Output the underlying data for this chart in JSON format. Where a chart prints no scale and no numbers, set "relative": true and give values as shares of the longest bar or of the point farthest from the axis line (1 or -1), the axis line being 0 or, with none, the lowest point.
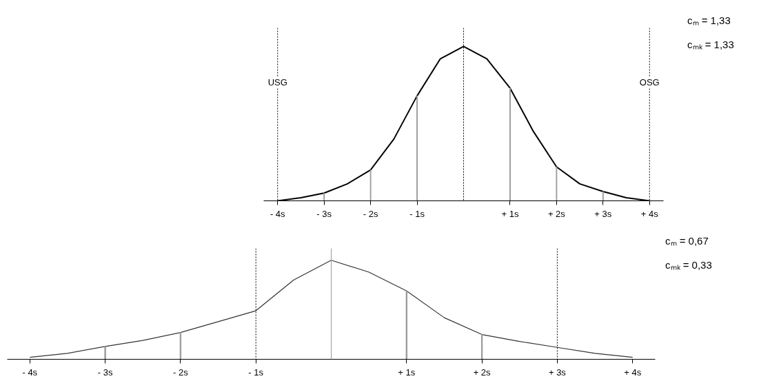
{
  "chart_data": [
    {
      "type": "line",
      "relative": true,
      "x": [
        -4,
        -3.5,
        -3,
        -2.5,
        -2,
        -1.5,
        -1,
        -0.5,
        0,
        0.5,
        1,
        1.5,
        2,
        2.5,
        3,
        3.5,
        4
      ],
      "series": [
        {
          "color": "#000000",
          "values": [
            0,
            0.02,
            0.05,
            0.11,
            0.2,
            0.4,
            0.68,
            0.92,
            1,
            0.92,
            0.73,
            0.45,
            0.22,
            0.11,
            0.06,
            0.02,
            0
          ]
        },
        {
          "type": "bar",
          "color": "#999999",
          "x": [
            -3,
            -2,
            -1,
            1,
            2,
            3
          ],
          "values": [
            0.05,
            0.2,
            0.68,
            0.73,
            0.22,
            0.06
          ]
        }
      ],
      "xlim": [
        -4.3,
        4.3
      ],
      "xticks": [
        {
          "value": -4,
          "label": "- 4s"
        },
        {
          "value": -3,
          "label": "- 3s"
        },
        {
          "value": -2,
          "label": "- 2s"
        },
        {
          "value": -1,
          "label": "- 1s"
        },
        {
          "value": 1,
          "label": "+ 1s"
        },
        {
          "value": 2,
          "label": "+ 2s"
        },
        {
          "value": 3,
          "label": "+ 3s"
        },
        {
          "value": 4,
          "label": "+ 4s"
        }
      ],
      "ref_lines": [
        {
          "axis": "x",
          "value": -4,
          "label": "USG",
          "line_style": "dotted",
          "color": "#000000"
        },
        {
          "axis": "x",
          "value": 0,
          "label": null,
          "line_style": "dotted",
          "color": "#000000"
        },
        {
          "axis": "x",
          "value": 4,
          "label": "OSG",
          "line_style": "dotted",
          "color": "#000000"
        }
      ],
      "annotations": [
        "cₘ = 1,33",
        "cₘₖ = 1,33"
      ],
      "grid": false,
      "tick_labels": "x"
    },
    {
      "type": "line",
      "relative": true,
      "x": [
        -4,
        -3.5,
        -3,
        -2.5,
        -2,
        -1.5,
        -1,
        -0.5,
        0,
        0.5,
        1,
        1.5,
        2,
        2.5,
        3,
        3.5,
        4
      ],
      "series": [
        {
          "color": "#333333",
          "values": [
            0.02,
            0.06,
            0.13,
            0.19,
            0.27,
            0.38,
            0.49,
            0.8,
            1,
            0.88,
            0.69,
            0.42,
            0.25,
            0.18,
            0.12,
            0.06,
            0.02
          ]
        },
        {
          "type": "bar",
          "color": "#999999",
          "x": [
            -3,
            -2,
            1,
            2
          ],
          "values": [
            0.13,
            0.27,
            0.69,
            0.25
          ]
        }
      ],
      "xlim": [
        -4.3,
        4.3
      ],
      "xticks": [
        {
          "value": -4,
          "label": "- 4s"
        },
        {
          "value": -3,
          "label": "- 3s"
        },
        {
          "value": -2,
          "label": "- 2s"
        },
        {
          "value": -1,
          "label": "- 1s"
        },
        {
          "value": 1,
          "label": "+ 1s"
        },
        {
          "value": 2,
          "label": "+ 2s"
        },
        {
          "value": 3,
          "label": "+ 3s"
        },
        {
          "value": 4,
          "label": "+ 4s"
        }
      ],
      "ref_lines": [
        {
          "axis": "x",
          "value": -1,
          "label": null,
          "line_style": "dotted",
          "color": "#000000"
        },
        {
          "axis": "x",
          "value": 0,
          "label": null,
          "line_style": "solid",
          "color": "#999999"
        },
        {
          "axis": "x",
          "value": 3,
          "label": null,
          "line_style": "dotted",
          "color": "#000000"
        }
      ],
      "annotations": [
        "cₘ = 0,67",
        "cₘₖ = 0,33"
      ],
      "grid": false,
      "tick_labels": "x"
    }
  ]
}
